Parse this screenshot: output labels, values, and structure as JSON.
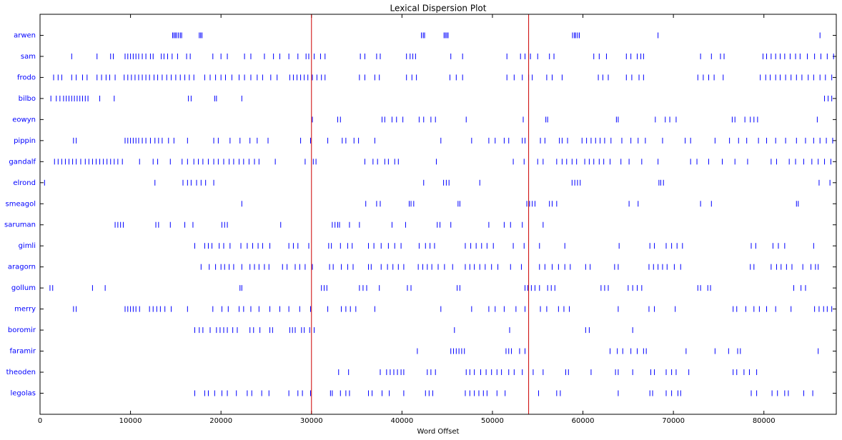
{
  "chart_data": {
    "type": "dispersion",
    "title": "Lexical Dispersion Plot",
    "xlabel": "Word Offset",
    "xlim": [
      0,
      88000
    ],
    "xticks": [
      0,
      10000,
      20000,
      30000,
      40000,
      50000,
      60000,
      70000,
      80000
    ],
    "color": "#0000ff",
    "label_color": "#0000ff",
    "vlines": [
      30000,
      54000
    ],
    "vline_color": "#cc0000",
    "series": [
      {
        "name": "arwen",
        "values": [
          14650,
          14800,
          14950,
          15100,
          15300,
          15500,
          15650,
          17600,
          17750,
          17900,
          42150,
          42350,
          42500,
          44650,
          44800,
          44950,
          45100,
          58850,
          59050,
          59200,
          59400,
          59600,
          68300,
          86200
        ]
      },
      {
        "name": "sam",
        "values": [
          3500,
          6300,
          7800,
          8100,
          9400,
          9700,
          10000,
          10300,
          10600,
          10900,
          11300,
          11700,
          12200,
          12500,
          13400,
          13700,
          14100,
          14600,
          15200,
          16200,
          16600,
          19100,
          20000,
          20700,
          22600,
          23300,
          24800,
          25800,
          26500,
          27500,
          28500,
          29400,
          29700,
          30300,
          31000,
          31500,
          35400,
          35900,
          37200,
          37600,
          40500,
          40900,
          41200,
          41500,
          45400,
          46700,
          51600,
          53100,
          53600,
          54200,
          55000,
          56300,
          56800,
          61200,
          61800,
          62600,
          64800,
          65300,
          66000,
          66400,
          66700,
          73000,
          74200,
          75200,
          75600,
          79900,
          80300,
          80800,
          81300,
          81800,
          82300,
          82900,
          83500,
          84000,
          84800,
          85600,
          86300,
          87000,
          87700
        ]
      },
      {
        "name": "frodo",
        "values": [
          1500,
          2000,
          2400,
          3500,
          4000,
          4700,
          5200,
          6300,
          6800,
          7300,
          7700,
          8300,
          9300,
          9700,
          10100,
          10500,
          10900,
          11300,
          11700,
          12100,
          12600,
          13000,
          13500,
          14000,
          14500,
          15000,
          15500,
          16000,
          16500,
          17000,
          18200,
          18800,
          19400,
          20000,
          20500,
          21200,
          22000,
          22600,
          23300,
          24000,
          24600,
          25500,
          26200,
          27600,
          28000,
          28400,
          28800,
          29200,
          29600,
          30100,
          30600,
          31100,
          31500,
          35300,
          35900,
          37000,
          37500,
          40500,
          41100,
          41600,
          45300,
          46000,
          46700,
          51600,
          52400,
          53300,
          54000,
          54400,
          56000,
          56600,
          57700,
          61700,
          62200,
          62800,
          64800,
          65400,
          66200,
          66700,
          72700,
          73300,
          73900,
          74500,
          75500,
          79600,
          80200,
          80700,
          81300,
          81800,
          82400,
          83000,
          83600,
          84200,
          84900,
          85500,
          86200,
          86800,
          87500
        ]
      },
      {
        "name": "bilbo",
        "values": [
          1200,
          1800,
          2200,
          2600,
          2900,
          3200,
          3500,
          3800,
          4100,
          4400,
          4700,
          5000,
          5300,
          6600,
          8200,
          16400,
          16700,
          19300,
          19500,
          22300,
          86700,
          87100,
          87500
        ]
      },
      {
        "name": "eowyn",
        "values": [
          30100,
          32900,
          33200,
          37800,
          38100,
          38900,
          39400,
          40100,
          41900,
          42400,
          43200,
          43700,
          47100,
          53400,
          55900,
          56100,
          63700,
          63900,
          68000,
          69100,
          69600,
          70300,
          76500,
          76800,
          77900,
          78500,
          78900,
          79300,
          85900
        ]
      },
      {
        "name": "pippin",
        "values": [
          3700,
          4000,
          9400,
          9700,
          10000,
          10300,
          10600,
          10900,
          11300,
          11700,
          12200,
          12700,
          13100,
          13500,
          14200,
          14800,
          16300,
          19200,
          19700,
          21000,
          22100,
          23200,
          24000,
          25200,
          28800,
          29900,
          31800,
          33400,
          33800,
          34700,
          35200,
          37000,
          44300,
          47700,
          49600,
          50300,
          51300,
          51800,
          53300,
          53600,
          55300,
          55800,
          57400,
          57700,
          58300,
          59900,
          60400,
          60900,
          61400,
          61900,
          62400,
          63100,
          64300,
          65300,
          66100,
          66900,
          68800,
          71300,
          71900,
          74600,
          76200,
          77200,
          78100,
          79400,
          80300,
          81300,
          82400,
          83600,
          84600,
          85500,
          86200,
          86900,
          87600
        ]
      },
      {
        "name": "gandalf",
        "values": [
          1600,
          2000,
          2400,
          2800,
          3200,
          3600,
          4000,
          4500,
          5000,
          5400,
          5800,
          6200,
          6600,
          7000,
          7400,
          7800,
          8200,
          8600,
          9100,
          11000,
          12500,
          13000,
          14400,
          15700,
          16300,
          17000,
          17500,
          18000,
          18600,
          19200,
          19700,
          20300,
          20900,
          21400,
          22000,
          22500,
          23100,
          23700,
          24200,
          26000,
          29300,
          30200,
          30500,
          35900,
          36800,
          37300,
          38100,
          38500,
          39200,
          39600,
          43800,
          52300,
          53500,
          55000,
          55600,
          57100,
          57700,
          58200,
          58800,
          59300,
          60200,
          60700,
          61200,
          61800,
          62300,
          63000,
          64200,
          65100,
          66500,
          68300,
          71900,
          72600,
          73900,
          75400,
          76800,
          78200,
          80800,
          81400,
          82800,
          83500,
          84400,
          85300,
          86000,
          86700,
          87400
        ]
      },
      {
        "name": "elrond",
        "values": [
          500,
          12700,
          15800,
          16300,
          16700,
          17300,
          17800,
          18300,
          19200,
          42400,
          44600,
          44900,
          45200,
          48600,
          58800,
          59100,
          59400,
          59700,
          68400,
          68600,
          68900,
          86100,
          87300
        ]
      },
      {
        "name": "smeagol",
        "values": [
          22300,
          36000,
          37200,
          37600,
          40800,
          41000,
          41300,
          46200,
          46400,
          53800,
          54100,
          54400,
          54700,
          56300,
          56600,
          57100,
          65100,
          66100,
          73000,
          74200,
          83600,
          83800
        ]
      },
      {
        "name": "saruman",
        "values": [
          8300,
          8600,
          8900,
          9200,
          12800,
          13100,
          14400,
          16000,
          16900,
          20100,
          20400,
          20700,
          26600,
          32300,
          32600,
          32900,
          33100,
          34200,
          35300,
          38900,
          40400,
          43900,
          44200,
          45400,
          49600,
          51300,
          52000,
          53300,
          55600
        ]
      },
      {
        "name": "gimli",
        "values": [
          17100,
          18200,
          18600,
          19000,
          19800,
          20300,
          21000,
          22200,
          22900,
          23500,
          24100,
          24600,
          25400,
          27500,
          28000,
          28500,
          29700,
          31900,
          32200,
          33200,
          34000,
          34500,
          36300,
          36900,
          37700,
          38500,
          39200,
          39900,
          41900,
          42600,
          43100,
          43600,
          47000,
          47600,
          48200,
          48800,
          49400,
          50100,
          52300,
          53500,
          55200,
          58000,
          64000,
          67400,
          67900,
          69200,
          69800,
          70400,
          71000,
          78600,
          79100,
          81000,
          81600,
          82300,
          85500
        ]
      },
      {
        "name": "aragorn",
        "values": [
          17800,
          18700,
          19400,
          20000,
          20400,
          20900,
          21400,
          22300,
          23200,
          23700,
          24200,
          24800,
          25300,
          26800,
          27300,
          28200,
          28700,
          29300,
          30100,
          32000,
          32400,
          33300,
          34000,
          34600,
          36300,
          36600,
          37700,
          38400,
          39000,
          39600,
          40200,
          41800,
          42300,
          42800,
          43300,
          44000,
          44700,
          45600,
          47000,
          47500,
          48000,
          48600,
          49200,
          49900,
          50600,
          52000,
          53200,
          55200,
          55800,
          56600,
          57300,
          58000,
          58600,
          60300,
          60800,
          63500,
          63900,
          67300,
          67800,
          68300,
          68800,
          69300,
          70100,
          70800,
          78500,
          78900,
          80800,
          81400,
          81900,
          82500,
          83100,
          84300,
          85200,
          85700,
          86000
        ]
      },
      {
        "name": "gollum",
        "values": [
          1100,
          1400,
          5800,
          7200,
          22100,
          22300,
          31100,
          31400,
          31700,
          35300,
          35700,
          36100,
          37500,
          40600,
          41000,
          46100,
          46400,
          53600,
          53900,
          54300,
          54700,
          55200,
          56100,
          56500,
          56900,
          62000,
          62400,
          62800,
          65000,
          65500,
          66000,
          66500,
          72700,
          73000,
          73800,
          74100,
          83300,
          84100,
          84600
        ]
      },
      {
        "name": "merry",
        "values": [
          3700,
          4000,
          9400,
          9700,
          10000,
          10300,
          10600,
          11000,
          12100,
          12500,
          12900,
          13300,
          13800,
          14500,
          16300,
          19100,
          20100,
          20800,
          22000,
          22500,
          23300,
          24200,
          25400,
          26500,
          27500,
          28700,
          29900,
          31800,
          33300,
          33800,
          34300,
          34900,
          37000,
          44300,
          47700,
          49600,
          50300,
          51300,
          52600,
          53600,
          55300,
          56000,
          57300,
          57900,
          58500,
          63900,
          67300,
          67900,
          70200,
          76600,
          77000,
          78000,
          78900,
          79500,
          80300,
          81300,
          83000,
          85600,
          86100,
          86600,
          87000,
          87500
        ]
      },
      {
        "name": "boromir",
        "values": [
          17100,
          17600,
          18000,
          18800,
          19500,
          19900,
          20300,
          20700,
          21300,
          21800,
          23200,
          23600,
          24300,
          25400,
          25700,
          27600,
          27900,
          28200,
          28900,
          29200,
          29800,
          30300,
          45800,
          51900,
          60300,
          60700,
          65500
        ]
      },
      {
        "name": "faramir",
        "values": [
          41700,
          45400,
          45700,
          46000,
          46300,
          46600,
          46900,
          51500,
          51800,
          52100,
          53000,
          53600,
          63000,
          63800,
          64400,
          65300,
          66000,
          66700,
          67000,
          71400,
          74600,
          76100,
          77100,
          77400,
          86000
        ]
      },
      {
        "name": "theoden",
        "values": [
          33000,
          34100,
          37600,
          38300,
          38700,
          39100,
          39500,
          39900,
          40200,
          42800,
          43200,
          43700,
          47100,
          47500,
          48000,
          48700,
          49300,
          49900,
          50500,
          51000,
          51800,
          52400,
          53300,
          54500,
          55600,
          58100,
          58400,
          60900,
          63600,
          63900,
          65500,
          67500,
          67900,
          69200,
          69800,
          70300,
          71700,
          76600,
          77000,
          77800,
          78400,
          79200
        ]
      },
      {
        "name": "legolas",
        "values": [
          17100,
          18200,
          18600,
          19300,
          20100,
          20700,
          21700,
          22900,
          23400,
          24500,
          25300,
          27500,
          28500,
          29000,
          29900,
          32100,
          32300,
          33200,
          33800,
          34200,
          36300,
          36700,
          37800,
          38600,
          40200,
          42600,
          43000,
          43400,
          47000,
          47500,
          48000,
          48500,
          49000,
          49400,
          50500,
          51400,
          55100,
          57100,
          57500,
          63900,
          67400,
          67700,
          69200,
          69800,
          70500,
          70800,
          78600,
          79200,
          80900,
          81500,
          82300,
          82700,
          84400,
          85400
        ]
      }
    ]
  }
}
